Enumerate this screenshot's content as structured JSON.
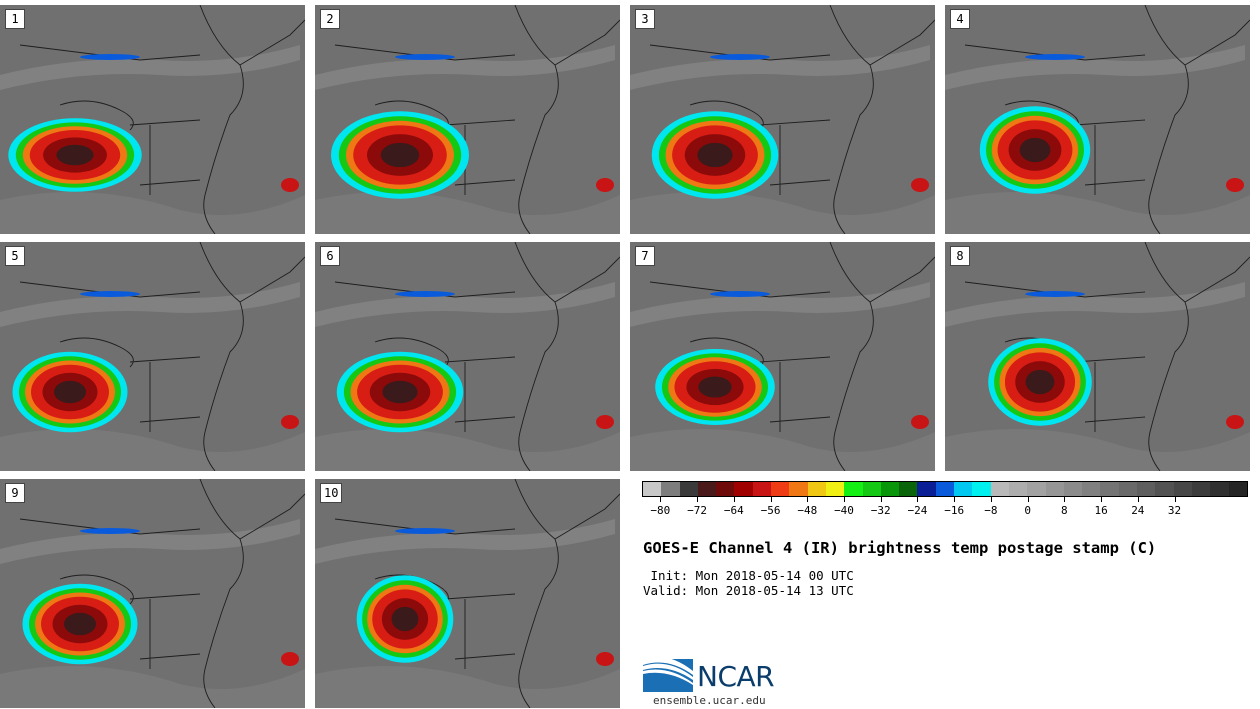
{
  "panels": [
    {
      "label": "1"
    },
    {
      "label": "2"
    },
    {
      "label": "3"
    },
    {
      "label": "4"
    },
    {
      "label": "5"
    },
    {
      "label": "6"
    },
    {
      "label": "7"
    },
    {
      "label": "8"
    },
    {
      "label": "9"
    },
    {
      "label": "10"
    }
  ],
  "colorbar": {
    "colors": [
      "#c8c8c8",
      "#7d7d7d",
      "#3a3a3a",
      "#4a1a1a",
      "#6e0a0a",
      "#a00000",
      "#c81414",
      "#f03c14",
      "#f07814",
      "#f0c814",
      "#f0f014",
      "#14f014",
      "#14c814",
      "#0a960a",
      "#0a640a",
      "#0a1e96",
      "#0a5adc",
      "#00c8f0",
      "#00f0f0",
      "#b9b9b9",
      "#adadad",
      "#a2a2a2",
      "#969696",
      "#8b8b8b",
      "#808080",
      "#747474",
      "#696969",
      "#5e5e5e",
      "#525252",
      "#474747",
      "#3c3c3c",
      "#303030",
      "#252525"
    ],
    "tick_labels": [
      "−80",
      "−72",
      "−64",
      "−56",
      "−48",
      "−40",
      "−32",
      "−24",
      "−16",
      "−8",
      "0",
      "8",
      "16",
      "24",
      "32"
    ]
  },
  "title": "GOES-E Channel 4 (IR) brightness temp postage stamp (C)",
  "init_line": " Init: Mon 2018-05-14 00 UTC",
  "valid_line": "Valid: Mon 2018-05-14 13 UTC",
  "logo": {
    "text": "NCAR",
    "url": "ensemble.ucar.edu"
  }
}
